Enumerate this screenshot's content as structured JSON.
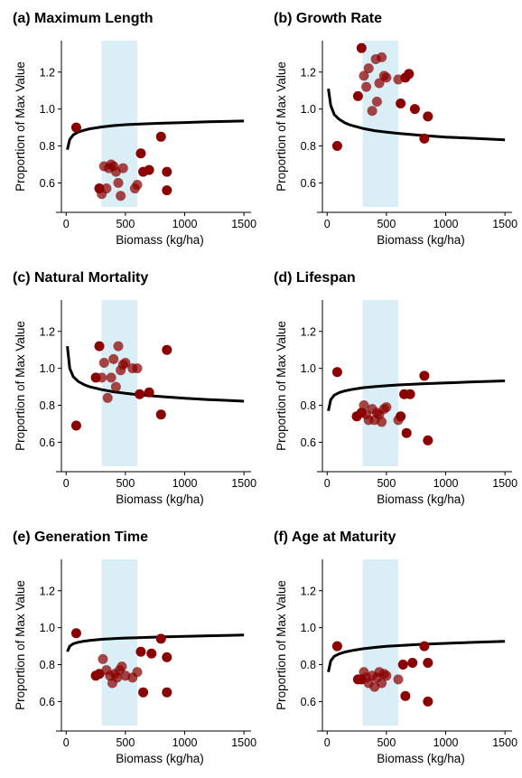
{
  "chart_data": [
    {
      "type": "scatter",
      "title": "(a) Maximum Length",
      "xlabel": "Biomass (kg/ha)",
      "ylabel": "Proportion of Max Value",
      "xlim": [
        -40,
        1560
      ],
      "ylim": [
        0.47,
        1.37
      ],
      "xticks": [
        0,
        500,
        1000,
        1500
      ],
      "yticks": [
        0.6,
        0.8,
        1.0,
        1.2
      ],
      "ytick_labels": [
        "0.6",
        "0.8",
        "1.0",
        "1.2"
      ],
      "shaded_range": [
        300,
        600
      ],
      "curve": {
        "x": [
          10,
          30,
          60,
          100,
          150,
          200,
          300,
          400,
          500,
          600,
          800,
          1000,
          1200,
          1500
        ],
        "y": [
          0.78,
          0.835,
          0.86,
          0.875,
          0.885,
          0.893,
          0.903,
          0.91,
          0.915,
          0.918,
          0.923,
          0.927,
          0.931,
          0.935
        ]
      },
      "points": {
        "x": [
          85,
          280,
          300,
          320,
          340,
          360,
          380,
          400,
          420,
          440,
          460,
          480,
          580,
          600,
          630,
          650,
          700,
          800,
          850,
          850
        ],
        "y": [
          0.9,
          0.57,
          0.54,
          0.69,
          0.57,
          0.68,
          0.7,
          0.69,
          0.66,
          0.6,
          0.53,
          0.68,
          0.57,
          0.59,
          0.76,
          0.66,
          0.67,
          0.85,
          0.66,
          0.56
        ]
      },
      "colors": {
        "points": "#8b0000",
        "shade": "#daeef5",
        "curve": "#000000"
      }
    },
    {
      "type": "scatter",
      "title": "(b) Growth Rate",
      "xlabel": "Biomass (kg/ha)",
      "ylabel": "Proportion of Max Value",
      "xlim": [
        -40,
        1560
      ],
      "ylim": [
        0.47,
        1.37
      ],
      "xticks": [
        0,
        500,
        1000,
        1500
      ],
      "yticks": [
        0.6,
        0.8,
        1.0,
        1.2
      ],
      "ytick_labels": [
        "0.6",
        "0.8",
        "1.0",
        "1.2"
      ],
      "shaded_range": [
        300,
        600
      ],
      "curve": {
        "x": [
          10,
          30,
          60,
          100,
          150,
          200,
          300,
          400,
          500,
          600,
          800,
          1000,
          1200,
          1500
        ],
        "y": [
          1.11,
          1.02,
          0.97,
          0.945,
          0.925,
          0.912,
          0.895,
          0.883,
          0.875,
          0.868,
          0.857,
          0.848,
          0.842,
          0.833
        ]
      },
      "points": {
        "x": [
          85,
          260,
          290,
          310,
          330,
          350,
          380,
          410,
          420,
          440,
          460,
          480,
          500,
          600,
          620,
          660,
          690,
          740,
          820,
          850
        ],
        "y": [
          0.8,
          1.07,
          1.33,
          1.18,
          1.12,
          1.22,
          0.99,
          1.27,
          1.04,
          1.14,
          1.28,
          1.18,
          1.17,
          1.16,
          1.03,
          1.17,
          1.19,
          1.0,
          0.84,
          0.96
        ]
      },
      "colors": {
        "points": "#8b0000",
        "shade": "#daeef5",
        "curve": "#000000"
      }
    },
    {
      "type": "scatter",
      "title": "(c) Natural Mortality",
      "xlabel": "Biomass (kg/ha)",
      "ylabel": "Proportion of Max Value",
      "xlim": [
        -40,
        1560
      ],
      "ylim": [
        0.47,
        1.37
      ],
      "xticks": [
        0,
        500,
        1000,
        1500
      ],
      "yticks": [
        0.6,
        0.8,
        1.0,
        1.2
      ],
      "ytick_labels": [
        "0.6",
        "0.8",
        "1.0",
        "1.2"
      ],
      "shaded_range": [
        300,
        600
      ],
      "curve": {
        "x": [
          10,
          30,
          60,
          100,
          150,
          200,
          300,
          400,
          500,
          600,
          800,
          1000,
          1200,
          1500
        ],
        "y": [
          1.12,
          1.0,
          0.955,
          0.93,
          0.912,
          0.9,
          0.885,
          0.873,
          0.865,
          0.858,
          0.847,
          0.838,
          0.831,
          0.822
        ]
      },
      "points": {
        "x": [
          85,
          250,
          280,
          300,
          320,
          350,
          380,
          400,
          420,
          440,
          460,
          480,
          500,
          560,
          600,
          620,
          700,
          800,
          850
        ],
        "y": [
          0.69,
          0.95,
          1.12,
          0.95,
          1.03,
          0.84,
          0.95,
          1.05,
          0.9,
          1.12,
          0.99,
          1.02,
          1.03,
          1.0,
          1.0,
          0.86,
          0.87,
          0.75,
          1.1
        ]
      },
      "colors": {
        "points": "#8b0000",
        "shade": "#daeef5",
        "curve": "#000000"
      }
    },
    {
      "type": "scatter",
      "title": "(d) Lifespan",
      "xlabel": "Biomass (kg/ha)",
      "ylabel": "Proportion of Max Value",
      "xlim": [
        -40,
        1560
      ],
      "ylim": [
        0.47,
        1.37
      ],
      "xticks": [
        0,
        500,
        1000,
        1500
      ],
      "yticks": [
        0.6,
        0.8,
        1.0,
        1.2
      ],
      "ytick_labels": [
        "0.6",
        "0.8",
        "1.0",
        "1.2"
      ],
      "shaded_range": [
        300,
        600
      ],
      "curve": {
        "x": [
          10,
          30,
          60,
          100,
          150,
          200,
          300,
          400,
          500,
          600,
          800,
          1000,
          1200,
          1500
        ],
        "y": [
          0.77,
          0.83,
          0.855,
          0.868,
          0.878,
          0.885,
          0.895,
          0.901,
          0.906,
          0.91,
          0.916,
          0.921,
          0.926,
          0.932
        ]
      },
      "points": {
        "x": [
          85,
          250,
          290,
          310,
          330,
          350,
          380,
          400,
          420,
          440,
          460,
          480,
          500,
          600,
          620,
          650,
          670,
          700,
          820,
          850
        ],
        "y": [
          0.98,
          0.74,
          0.76,
          0.8,
          0.75,
          0.72,
          0.78,
          0.72,
          0.76,
          0.75,
          0.71,
          0.78,
          0.79,
          0.72,
          0.74,
          0.86,
          0.65,
          0.86,
          0.96,
          0.61
        ]
      },
      "colors": {
        "points": "#8b0000",
        "shade": "#daeef5",
        "curve": "#000000"
      }
    },
    {
      "type": "scatter",
      "title": "(e) Generation Time",
      "xlabel": "Biomass (kg/ha)",
      "ylabel": "Proportion of Max Value",
      "xlim": [
        -40,
        1560
      ],
      "ylim": [
        0.47,
        1.37
      ],
      "xticks": [
        0,
        500,
        1000,
        1500
      ],
      "yticks": [
        0.6,
        0.8,
        1.0,
        1.2
      ],
      "ytick_labels": [
        "0.6",
        "0.8",
        "1.0",
        "1.2"
      ],
      "shaded_range": [
        300,
        600
      ],
      "curve": {
        "x": [
          10,
          30,
          60,
          100,
          150,
          200,
          300,
          400,
          500,
          600,
          800,
          1000,
          1200,
          1500
        ],
        "y": [
          0.87,
          0.9,
          0.913,
          0.921,
          0.927,
          0.931,
          0.937,
          0.941,
          0.944,
          0.946,
          0.95,
          0.953,
          0.956,
          0.96
        ]
      },
      "points": {
        "x": [
          85,
          250,
          280,
          310,
          340,
          370,
          390,
          410,
          430,
          450,
          470,
          500,
          560,
          600,
          630,
          650,
          720,
          800,
          850,
          850
        ],
        "y": [
          0.97,
          0.74,
          0.75,
          0.83,
          0.77,
          0.74,
          0.7,
          0.75,
          0.73,
          0.77,
          0.79,
          0.74,
          0.73,
          0.76,
          0.87,
          0.65,
          0.86,
          0.94,
          0.84,
          0.65
        ]
      },
      "colors": {
        "points": "#8b0000",
        "shade": "#daeef5",
        "curve": "#000000"
      }
    },
    {
      "type": "scatter",
      "title": "(f) Age at Maturity",
      "xlabel": "Biomass (kg/ha)",
      "ylabel": "Proportion of Max Value",
      "xlim": [
        -40,
        1560
      ],
      "ylim": [
        0.47,
        1.37
      ],
      "xticks": [
        0,
        500,
        1000,
        1500
      ],
      "yticks": [
        0.6,
        0.8,
        1.0,
        1.2
      ],
      "ytick_labels": [
        "0.6",
        "0.8",
        "1.0",
        "1.2"
      ],
      "shaded_range": [
        300,
        600
      ],
      "curve": {
        "x": [
          10,
          30,
          60,
          100,
          150,
          200,
          300,
          400,
          500,
          600,
          800,
          1000,
          1200,
          1500
        ],
        "y": [
          0.76,
          0.82,
          0.845,
          0.858,
          0.868,
          0.875,
          0.886,
          0.893,
          0.899,
          0.903,
          0.91,
          0.915,
          0.92,
          0.926
        ]
      },
      "points": {
        "x": [
          85,
          260,
          290,
          310,
          330,
          350,
          380,
          400,
          420,
          440,
          460,
          480,
          500,
          600,
          640,
          660,
          720,
          820,
          850,
          850
        ],
        "y": [
          0.9,
          0.72,
          0.72,
          0.76,
          0.73,
          0.7,
          0.74,
          0.68,
          0.73,
          0.76,
          0.7,
          0.75,
          0.74,
          0.72,
          0.8,
          0.63,
          0.81,
          0.9,
          0.81,
          0.6
        ]
      },
      "colors": {
        "points": "#8b0000",
        "shade": "#daeef5",
        "curve": "#000000"
      }
    }
  ]
}
